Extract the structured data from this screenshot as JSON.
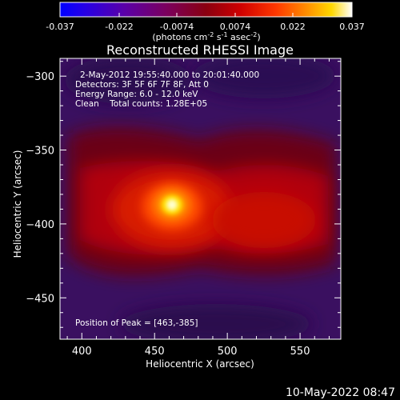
{
  "colorbar": {
    "tick_labels": [
      "-0.037",
      "-0.022",
      "-0.0074",
      "0.0074",
      "0.022",
      "0.037"
    ],
    "units_prefix": "(photons cm",
    "units_exp1": "-2",
    "units_mid1": " s",
    "units_exp2": "-1",
    "units_mid2": " asec",
    "units_exp3": "-2",
    "units_suffix": ")",
    "range": [
      -0.037,
      0.037
    ]
  },
  "plot": {
    "title": "Reconstructed RHESSI Image",
    "xlabel": "Heliocentric X (arcsec)",
    "ylabel": "Heliocentric Y (arcsec)",
    "x_range": [
      385,
      578
    ],
    "y_range": [
      -478,
      -288
    ],
    "x_ticks": [
      400,
      450,
      500,
      550
    ],
    "y_ticks": [
      -300,
      -350,
      -400,
      -450
    ],
    "x_tick_labels": [
      "400",
      "450",
      "500",
      "550"
    ],
    "y_tick_labels": [
      "−300",
      "−350",
      "−400",
      "−450"
    ],
    "info_lines": [
      "2-May-2012 19:55:40.000 to 20:01:40.000",
      "Detectors: 3F 5F 6F 7F 8F, Att 0",
      "Energy Range: 6.0 - 12.0 keV",
      "Clean    Total counts: 1.28E+05"
    ],
    "peak_text": "Position of Peak = [463,-385]",
    "peak_position": [
      463,
      -385
    ]
  },
  "footer": {
    "timestamp": "10-May-2022 08:47"
  },
  "colors": {
    "background": "#000000",
    "foreground": "#ffffff"
  }
}
